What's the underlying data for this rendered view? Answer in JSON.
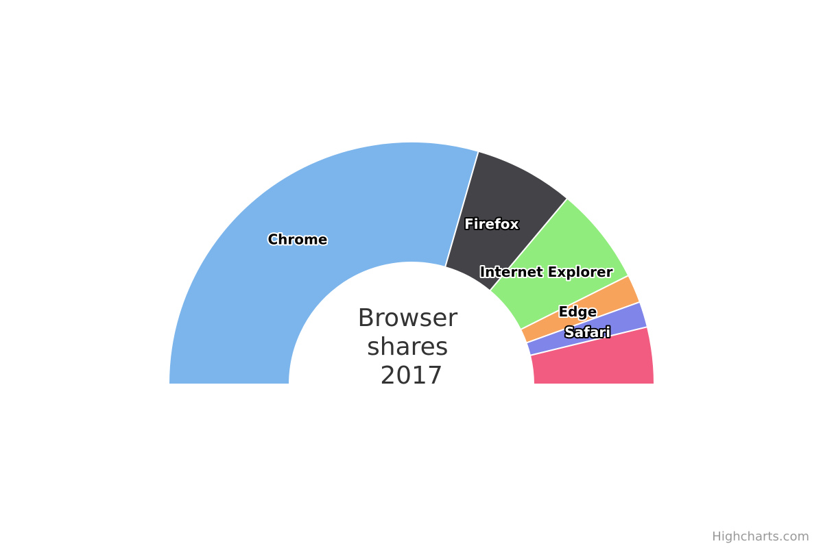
{
  "chart_data": {
    "type": "pie",
    "variant": "semi-circle donut",
    "title": "Browser shares 2017",
    "title_lines": [
      "Browser",
      "shares",
      "2017"
    ],
    "series": [
      {
        "name": "Browser share",
        "data": [
          {
            "name": "Chrome",
            "value": 58.9,
            "color": "#7cb5ec",
            "label_style": "light"
          },
          {
            "name": "Firefox",
            "value": 13.29,
            "color": "#434348",
            "label_style": "dark"
          },
          {
            "name": "Internet Explorer",
            "value": 13.0,
            "color": "#90ed7d",
            "label_style": "light"
          },
          {
            "name": "Edge",
            "value": 3.78,
            "color": "#f7a35c",
            "label_style": "light"
          },
          {
            "name": "Safari",
            "value": 3.42,
            "color": "#8085e9",
            "label_style": "dark"
          },
          {
            "name": "",
            "value": 7.61,
            "color": "#f15c80",
            "label_style": "none"
          }
        ]
      }
    ],
    "start_angle": -90,
    "end_angle": 90,
    "legend": "none"
  },
  "credits": "Highcharts.com"
}
